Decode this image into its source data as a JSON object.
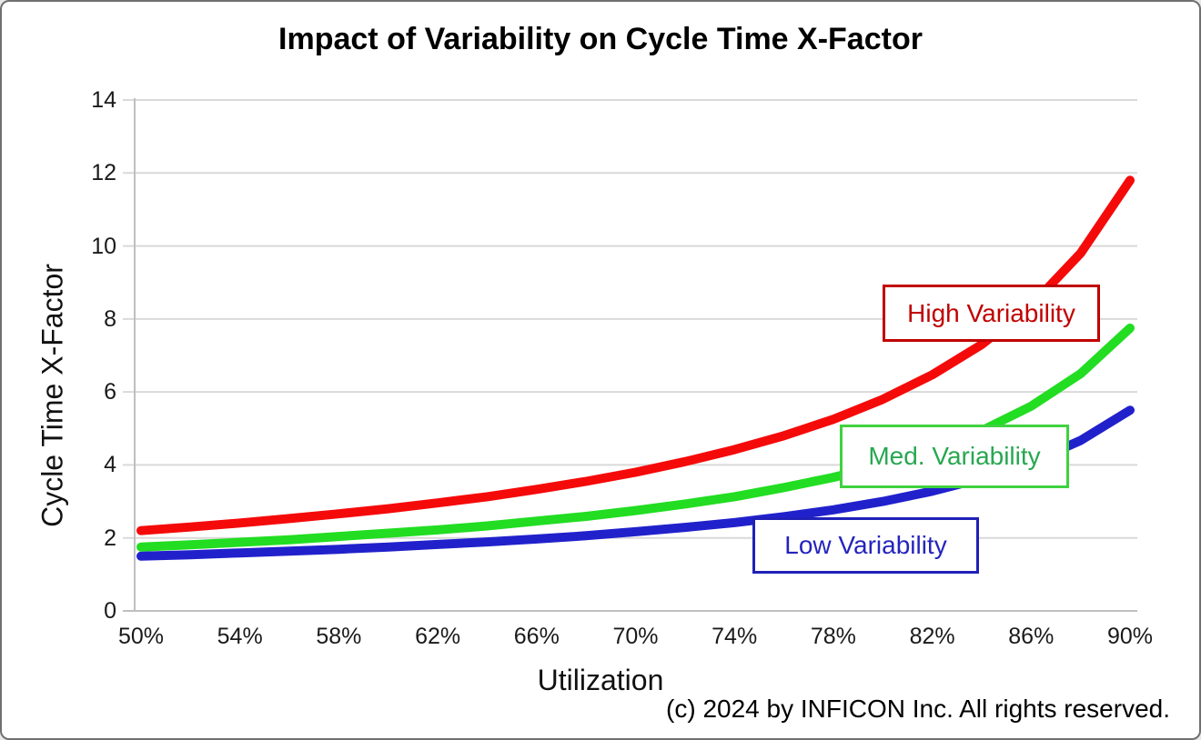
{
  "page": {
    "background": "#FFFFFF",
    "border_color": "#707070"
  },
  "chart_data": {
    "type": "line",
    "title": "Impact of Variability on Cycle Time X-Factor",
    "xlabel": "Utilization",
    "ylabel": "Cycle Time X-Factor",
    "grid": "horizontal-only",
    "grid_color": "#D9D9D9",
    "axis_color": "#BFBFBF",
    "xlim": [
      50,
      90
    ],
    "ylim": [
      0,
      14
    ],
    "x_tick_values": [
      50,
      54,
      58,
      62,
      66,
      70,
      74,
      78,
      82,
      86,
      90
    ],
    "x_tick_labels": [
      "50%",
      "54%",
      "58%",
      "62%",
      "66%",
      "70%",
      "74%",
      "78%",
      "82%",
      "86%",
      "90%"
    ],
    "y_ticks": [
      0,
      2,
      4,
      6,
      8,
      10,
      12,
      14
    ],
    "x": [
      50,
      52,
      54,
      56,
      58,
      60,
      62,
      64,
      66,
      68,
      70,
      72,
      74,
      76,
      78,
      80,
      82,
      84,
      86,
      88,
      90
    ],
    "series": [
      {
        "name": "High Variability",
        "curve_color": "#F50A0A",
        "label_color": "#C00000",
        "border_color": "#C00000",
        "values": [
          2.2,
          2.3,
          2.41,
          2.53,
          2.66,
          2.8,
          2.96,
          3.13,
          3.33,
          3.55,
          3.8,
          4.09,
          4.42,
          4.8,
          5.25,
          5.8,
          6.47,
          7.3,
          8.37,
          9.8,
          11.8
        ]
      },
      {
        "name": "Med. Variability",
        "curve_color": "#22DD22",
        "label_color": "#28A750",
        "border_color": "#3FD23F",
        "values": [
          1.75,
          1.81,
          1.88,
          1.95,
          2.04,
          2.13,
          2.22,
          2.33,
          2.46,
          2.59,
          2.75,
          2.93,
          3.13,
          3.38,
          3.66,
          4.0,
          4.42,
          4.94,
          5.61,
          6.5,
          7.75
        ]
      },
      {
        "name": "Low Variability",
        "curve_color": "#2121CC",
        "label_color": "#2424BE",
        "border_color": "#2020B8",
        "values": [
          1.5,
          1.54,
          1.59,
          1.64,
          1.69,
          1.75,
          1.82,
          1.89,
          1.97,
          2.06,
          2.17,
          2.29,
          2.42,
          2.58,
          2.77,
          3.0,
          3.28,
          3.63,
          4.07,
          4.67,
          5.5
        ]
      }
    ]
  },
  "footer": {
    "copyright": "(c) 2024 by INFICON Inc. All rights reserved."
  }
}
